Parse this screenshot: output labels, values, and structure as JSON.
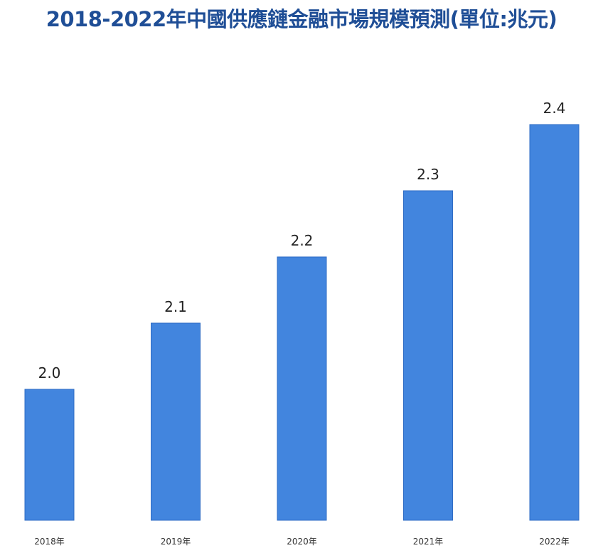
{
  "colors": {
    "title": "#1f4e96",
    "bar_fill": "#4285de",
    "bar_stroke": "#2f6cc4"
  },
  "chart_data": {
    "type": "bar",
    "title": "2018-2022年中國供應鏈金融市場規模預測(單位:兆元)",
    "xlabel": "",
    "ylabel": "",
    "categories": [
      "2018年",
      "2019年",
      "2020年",
      "2021年",
      "2022年"
    ],
    "values": [
      2.0,
      2.1,
      2.2,
      2.3,
      2.4
    ],
    "data_labels": [
      "2.0",
      "2.1",
      "2.2",
      "2.3",
      "2.4"
    ],
    "grid": false,
    "legend": "none"
  }
}
